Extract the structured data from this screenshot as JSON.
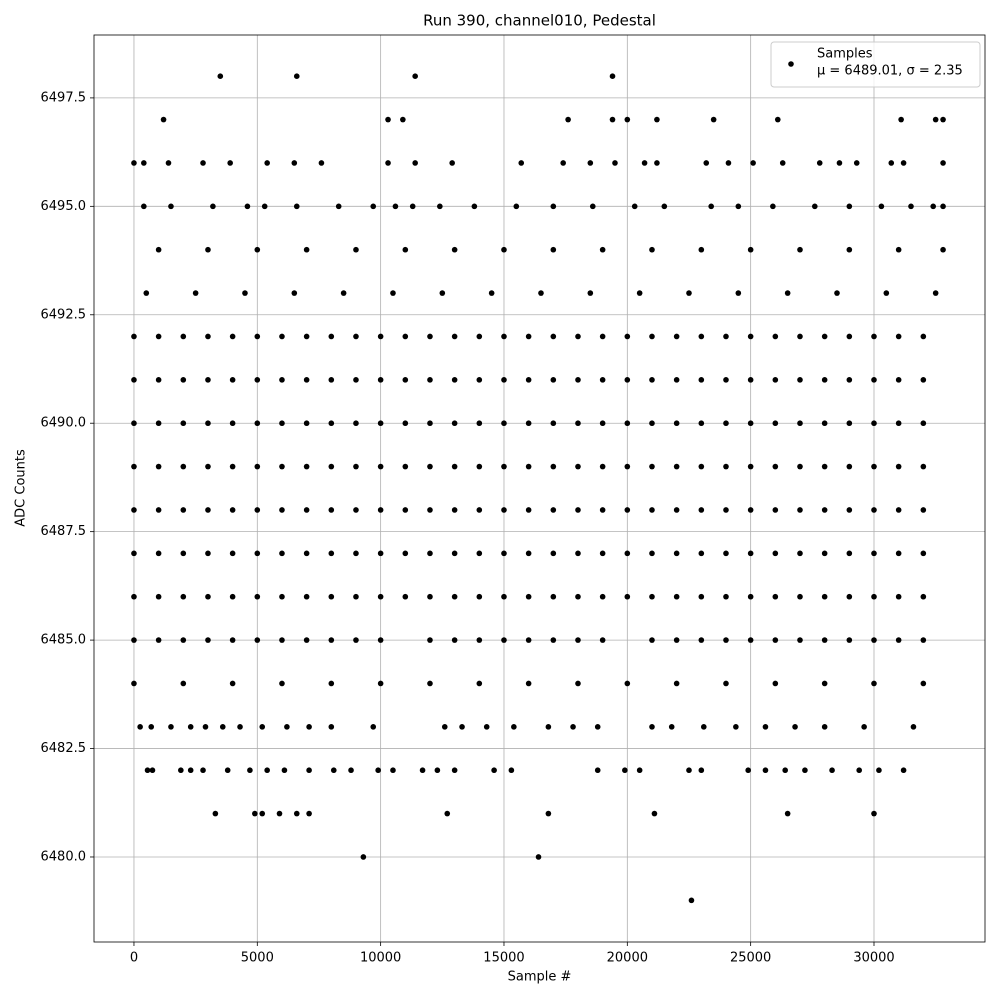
{
  "chart_data": {
    "type": "scatter",
    "title": "Run 390, channel010, Pedestal",
    "xlabel": "Sample #",
    "ylabel": "ADC Counts",
    "legend_note": "μ = 6489.01, σ = 2.35",
    "legend_loc": "upper right",
    "grid": true,
    "xlim": [
      -1620,
      34500
    ],
    "ylim": [
      6478.04,
      6498.95
    ],
    "xticks": [
      0,
      5000,
      10000,
      15000,
      20000,
      25000,
      30000
    ],
    "yticks": [
      {
        "value": 6480,
        "label": "6480.0"
      },
      6482.5,
      {
        "value": 6485,
        "label": "6485.0"
      },
      6487.5,
      {
        "value": 6490,
        "label": "6490.0"
      },
      6492.5,
      {
        "value": 6495,
        "label": "6495.0"
      },
      6497.5
    ],
    "series": [
      {
        "name": "Samples",
        "color": "#000000",
        "x": [
          0,
          1000,
          2000,
          3000,
          4000,
          5000,
          6000,
          7000,
          8000,
          9000,
          10000,
          11000,
          12000,
          13000,
          14000,
          15000,
          16000,
          17000,
          18000,
          19000,
          20000,
          21000,
          22000,
          23000,
          24000,
          25000,
          26000,
          27000,
          28000,
          29000,
          30000,
          31000,
          32000,
          0,
          1000,
          2000,
          3000,
          4000,
          5000,
          6000,
          7000,
          8000,
          9000,
          10000,
          11000,
          12000,
          13000,
          14000,
          15000,
          16000,
          17000,
          18000,
          19000,
          20000,
          21000,
          22000,
          23000,
          24000,
          25000,
          26000,
          27000,
          28000,
          29000,
          30000,
          31000,
          32000,
          0,
          1000,
          2000,
          3000,
          4000,
          5000,
          6000,
          7000,
          8000,
          9000,
          10000,
          11000,
          12000,
          13000,
          14000,
          15000,
          16000,
          17000,
          18000,
          19000,
          20000,
          21000,
          22000,
          23000,
          24000,
          25000,
          26000,
          27000,
          28000,
          29000,
          30000,
          31000,
          32000,
          0,
          1000,
          2000,
          3000,
          4000,
          5000,
          6000,
          7000,
          8000,
          9000,
          10000,
          11000,
          12000,
          13000,
          14000,
          15000,
          16000,
          17000,
          18000,
          19000,
          20000,
          21000,
          22000,
          23000,
          24000,
          25000,
          26000,
          27000,
          28000,
          29000,
          30000,
          31000,
          32000,
          0,
          1000,
          2000,
          3000,
          4000,
          5000,
          6000,
          7000,
          8000,
          9000,
          10000,
          11000,
          12000,
          13000,
          14000,
          15000,
          16000,
          17000,
          18000,
          19000,
          20000,
          21000,
          22000,
          23000,
          24000,
          25000,
          26000,
          27000,
          28000,
          29000,
          30000,
          31000,
          32000,
          0,
          1000,
          2000,
          3000,
          4000,
          5000,
          6000,
          7000,
          8000,
          9000,
          10000,
          11000,
          12000,
          13000,
          14000,
          15000,
          16000,
          17000,
          18000,
          19000,
          20000,
          21000,
          22000,
          23000,
          24000,
          25000,
          26000,
          27000,
          28000,
          29000,
          30000,
          31000,
          32000,
          0,
          1000,
          2000,
          3000,
          4000,
          5000,
          6000,
          7000,
          8000,
          9000,
          10000,
          11000,
          12000,
          13000,
          14000,
          15000,
          16000,
          17000,
          18000,
          19000,
          20000,
          21000,
          22000,
          23000,
          24000,
          25000,
          26000,
          27000,
          28000,
          29000,
          30000,
          31000,
          32000,
          0,
          1000,
          2000,
          3000,
          4000,
          5000,
          6000,
          7000,
          8000,
          9000,
          10000,
          12000,
          13000,
          14000,
          15000,
          16000,
          17000,
          18000,
          19000,
          21000,
          22000,
          23000,
          24000,
          25000,
          26000,
          27000,
          28000,
          29000,
          30000,
          31000,
          32000,
          0,
          2000,
          4000,
          6000,
          8000,
          10000,
          12000,
          14000,
          16000,
          18000,
          20000,
          22000,
          24000,
          26000,
          28000,
          30000,
          32000,
          500,
          2500,
          4500,
          6500,
          8500,
          10500,
          12500,
          14500,
          16500,
          18500,
          20500,
          22500,
          24500,
          26500,
          28500,
          30500,
          32500,
          1000,
          3000,
          5000,
          7000,
          9000,
          11000,
          13000,
          15000,
          17000,
          19000,
          21000,
          23000,
          25000,
          27000,
          29000,
          31000,
          32800,
          400,
          1500,
          3200,
          4600,
          5300,
          6600,
          8300,
          9700,
          10600,
          11300,
          12400,
          13800,
          15500,
          17000,
          18600,
          20300,
          21500,
          23400,
          24500,
          25900,
          27600,
          29000,
          30300,
          31500,
          32400,
          32800,
          0,
          400,
          1400,
          2800,
          3900,
          5400,
          6500,
          7600,
          10300,
          11400,
          12900,
          15700,
          17400,
          18500,
          19500,
          20700,
          21200,
          23200,
          24100,
          25100,
          26300,
          27800,
          28600,
          29300,
          30700,
          31200,
          32800,
          1200,
          10300,
          10900,
          17600,
          19400,
          20000,
          21200,
          23500,
          26100,
          31100,
          32500,
          32800,
          3500,
          6600,
          11400,
          19400,
          250,
          700,
          1500,
          2300,
          2900,
          3600,
          4300,
          5200,
          6200,
          7100,
          8000,
          9700,
          12600,
          13300,
          14300,
          15400,
          16800,
          17800,
          18800,
          21000,
          21800,
          23100,
          24400,
          25600,
          26800,
          28000,
          29600,
          31600,
          550,
          750,
          1900,
          2300,
          2800,
          3800,
          4700,
          5400,
          6100,
          7100,
          8100,
          8800,
          9900,
          10500,
          11700,
          12300,
          13000,
          14600,
          15300,
          18800,
          19900,
          20500,
          22500,
          23000,
          24900,
          25600,
          26400,
          27200,
          28300,
          29400,
          30200,
          31200,
          3300,
          4900,
          5200,
          5900,
          6600,
          7100,
          12700,
          16800,
          21100,
          26500,
          30000,
          9300,
          16400,
          22600
        ],
        "values": [
          6492,
          6492,
          6492,
          6492,
          6492,
          6492,
          6492,
          6492,
          6492,
          6492,
          6492,
          6492,
          6492,
          6492,
          6492,
          6492,
          6492,
          6492,
          6492,
          6492,
          6492,
          6492,
          6492,
          6492,
          6492,
          6492,
          6492,
          6492,
          6492,
          6492,
          6492,
          6492,
          6492,
          6491,
          6491,
          6491,
          6491,
          6491,
          6491,
          6491,
          6491,
          6491,
          6491,
          6491,
          6491,
          6491,
          6491,
          6491,
          6491,
          6491,
          6491,
          6491,
          6491,
          6491,
          6491,
          6491,
          6491,
          6491,
          6491,
          6491,
          6491,
          6491,
          6491,
          6491,
          6491,
          6491,
          6490,
          6490,
          6490,
          6490,
          6490,
          6490,
          6490,
          6490,
          6490,
          6490,
          6490,
          6490,
          6490,
          6490,
          6490,
          6490,
          6490,
          6490,
          6490,
          6490,
          6490,
          6490,
          6490,
          6490,
          6490,
          6490,
          6490,
          6490,
          6490,
          6490,
          6490,
          6490,
          6490,
          6489,
          6489,
          6489,
          6489,
          6489,
          6489,
          6489,
          6489,
          6489,
          6489,
          6489,
          6489,
          6489,
          6489,
          6489,
          6489,
          6489,
          6489,
          6489,
          6489,
          6489,
          6489,
          6489,
          6489,
          6489,
          6489,
          6489,
          6489,
          6489,
          6489,
          6489,
          6489,
          6489,
          6488,
          6488,
          6488,
          6488,
          6488,
          6488,
          6488,
          6488,
          6488,
          6488,
          6488,
          6488,
          6488,
          6488,
          6488,
          6488,
          6488,
          6488,
          6488,
          6488,
          6488,
          6488,
          6488,
          6488,
          6488,
          6488,
          6488,
          6488,
          6488,
          6488,
          6488,
          6488,
          6488,
          6487,
          6487,
          6487,
          6487,
          6487,
          6487,
          6487,
          6487,
          6487,
          6487,
          6487,
          6487,
          6487,
          6487,
          6487,
          6487,
          6487,
          6487,
          6487,
          6487,
          6487,
          6487,
          6487,
          6487,
          6487,
          6487,
          6487,
          6487,
          6487,
          6487,
          6487,
          6487,
          6487,
          6486,
          6486,
          6486,
          6486,
          6486,
          6486,
          6486,
          6486,
          6486,
          6486,
          6486,
          6486,
          6486,
          6486,
          6486,
          6486,
          6486,
          6486,
          6486,
          6486,
          6486,
          6486,
          6486,
          6486,
          6486,
          6486,
          6486,
          6486,
          6486,
          6486,
          6486,
          6486,
          6486,
          6485,
          6485,
          6485,
          6485,
          6485,
          6485,
          6485,
          6485,
          6485,
          6485,
          6485,
          6485,
          6485,
          6485,
          6485,
          6485,
          6485,
          6485,
          6485,
          6485,
          6485,
          6485,
          6485,
          6485,
          6485,
          6485,
          6485,
          6485,
          6485,
          6485,
          6485,
          6484,
          6484,
          6484,
          6484,
          6484,
          6484,
          6484,
          6484,
          6484,
          6484,
          6484,
          6484,
          6484,
          6484,
          6484,
          6484,
          6484,
          6493,
          6493,
          6493,
          6493,
          6493,
          6493,
          6493,
          6493,
          6493,
          6493,
          6493,
          6493,
          6493,
          6493,
          6493,
          6493,
          6493,
          6494,
          6494,
          6494,
          6494,
          6494,
          6494,
          6494,
          6494,
          6494,
          6494,
          6494,
          6494,
          6494,
          6494,
          6494,
          6494,
          6494,
          6495,
          6495,
          6495,
          6495,
          6495,
          6495,
          6495,
          6495,
          6495,
          6495,
          6495,
          6495,
          6495,
          6495,
          6495,
          6495,
          6495,
          6495,
          6495,
          6495,
          6495,
          6495,
          6495,
          6495,
          6495,
          6495,
          6496,
          6496,
          6496,
          6496,
          6496,
          6496,
          6496,
          6496,
          6496,
          6496,
          6496,
          6496,
          6496,
          6496,
          6496,
          6496,
          6496,
          6496,
          6496,
          6496,
          6496,
          6496,
          6496,
          6496,
          6496,
          6496,
          6496,
          6497,
          6497,
          6497,
          6497,
          6497,
          6497,
          6497,
          6497,
          6497,
          6497,
          6497,
          6497,
          6498,
          6498,
          6498,
          6498,
          6483,
          6483,
          6483,
          6483,
          6483,
          6483,
          6483,
          6483,
          6483,
          6483,
          6483,
          6483,
          6483,
          6483,
          6483,
          6483,
          6483,
          6483,
          6483,
          6483,
          6483,
          6483,
          6483,
          6483,
          6483,
          6483,
          6483,
          6483,
          6482,
          6482,
          6482,
          6482,
          6482,
          6482,
          6482,
          6482,
          6482,
          6482,
          6482,
          6482,
          6482,
          6482,
          6482,
          6482,
          6482,
          6482,
          6482,
          6482,
          6482,
          6482,
          6482,
          6482,
          6482,
          6482,
          6482,
          6482,
          6482,
          6482,
          6482,
          6482,
          6481,
          6481,
          6481,
          6481,
          6481,
          6481,
          6481,
          6481,
          6481,
          6481,
          6481,
          6480,
          6480,
          6479
        ]
      }
    ]
  }
}
